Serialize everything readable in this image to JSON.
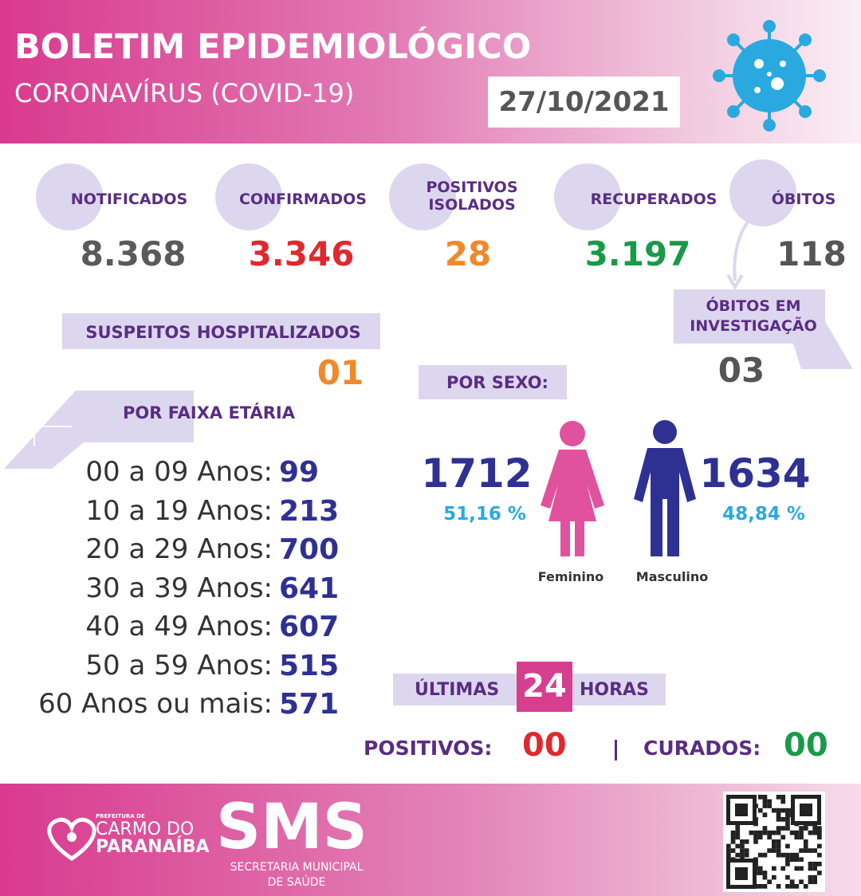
{
  "header": {
    "title": "BOLETIM EPIDEMIOLÓGICO",
    "subtitle": "CORONAVÍRUS (COVID-19)",
    "date": "27/10/2021"
  },
  "stats": [
    {
      "label": "NOTIFICADOS",
      "value": "8.368"
    },
    {
      "label": "CONFIRMADOS",
      "value": "3.346"
    },
    {
      "label": "POSITIVOS ISOLADOS",
      "value": "28"
    },
    {
      "label": "RECUPERADOS",
      "value": "3.197"
    },
    {
      "label": "ÓBITOS",
      "value": "118"
    }
  ],
  "deaths_investigation": {
    "label": "ÓBITOS EM INVESTIGAÇÃO",
    "value": "03"
  },
  "hospitalized": {
    "label": "SUSPEITOS HOSPITALIZADOS",
    "value": "01"
  },
  "age": {
    "title": "POR FAIXA ETÁRIA",
    "rows": [
      {
        "label": "00 a 09 Anos:",
        "value": "99"
      },
      {
        "label": "10 a 19 Anos:",
        "value": "213"
      },
      {
        "label": "20 a 29 Anos:",
        "value": "700"
      },
      {
        "label": "30 a 39 Anos:",
        "value": "641"
      },
      {
        "label": "40 a 49 Anos:",
        "value": "607"
      },
      {
        "label": "50 a 59 Anos:",
        "value": "515"
      },
      {
        "label": "60 Anos ou mais:",
        "value": "571"
      }
    ]
  },
  "sex": {
    "title": "POR SEXO:",
    "female": {
      "count": "1712",
      "percent": "51,16 %",
      "label": "Feminino"
    },
    "male": {
      "count": "1634",
      "percent": "48,84 %",
      "label": "Masculino"
    }
  },
  "last24": {
    "prefix": "ÚLTIMAS",
    "hours": "24",
    "suffix": "HORAS",
    "positive_label": "POSITIVOS:",
    "positive_value": "00",
    "cured_label": "CURADOS:",
    "cured_value": "00"
  },
  "footer": {
    "logo_small": "PREFEITURA DE",
    "logo_line1": "CARMO DO",
    "logo_line2": "PARANAÍBA",
    "sms": "SMS",
    "sms_sub1": "SECRETARIA MUNICIPAL",
    "sms_sub2": "DE SAÚDE"
  }
}
